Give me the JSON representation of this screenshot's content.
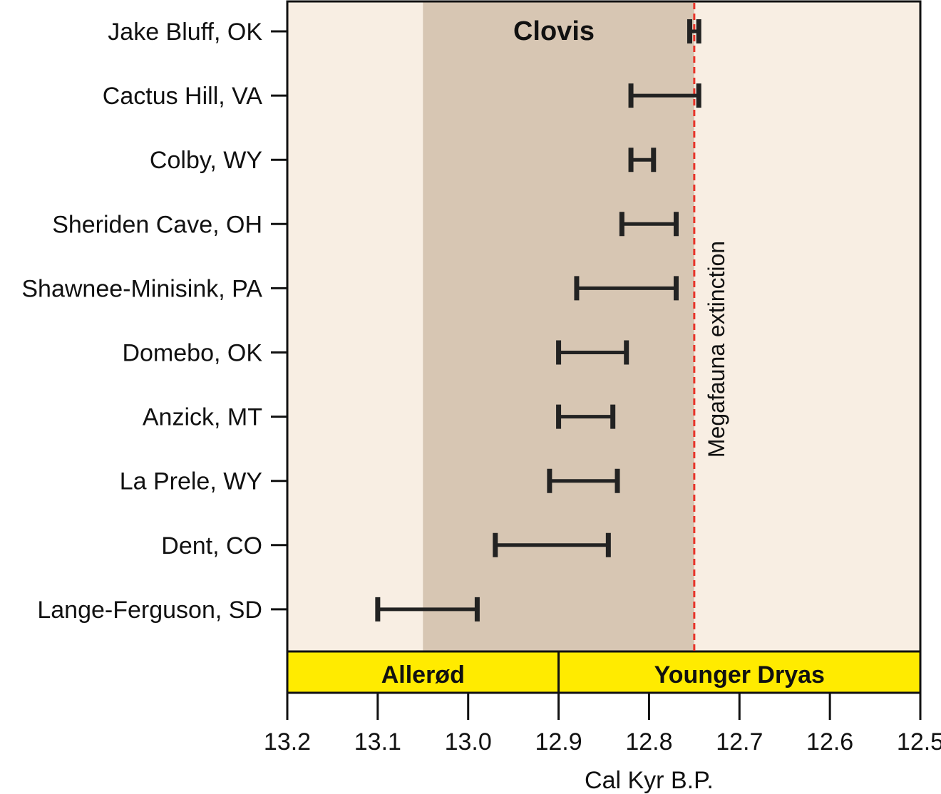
{
  "chart_data": {
    "type": "scatter",
    "title": "Clovis",
    "xlabel": "Cal Kyr B.P.",
    "ylabel": "",
    "xlim": [
      13.2,
      12.5
    ],
    "x_reversed": true,
    "x_ticks": [
      "13.2",
      "13.1",
      "13.0",
      "12.9",
      "12.8",
      "12.7",
      "12.6",
      "12.5"
    ],
    "grid": false,
    "legend": "none",
    "series": [
      {
        "categories": [
          "Jake Bluff, OK",
          "Cactus Hill, VA",
          "Colby, WY",
          "Sheriden Cave, OH",
          "Shawnee-Minisink, PA",
          "Domebo, OK",
          "Anzick, MT",
          "La Prele, WY",
          "Dent, CO",
          "Lange-Ferguson, SD"
        ],
        "ranges": [
          [
            12.755,
            12.745
          ],
          [
            12.82,
            12.745
          ],
          [
            12.82,
            12.795
          ],
          [
            12.83,
            12.77
          ],
          [
            12.88,
            12.77
          ],
          [
            12.9,
            12.825
          ],
          [
            12.9,
            12.84
          ],
          [
            12.91,
            12.835
          ],
          [
            12.97,
            12.845
          ],
          [
            13.1,
            12.99
          ]
        ]
      }
    ],
    "clovis_interval": [
      13.05,
      12.75
    ],
    "extinction_line": {
      "x": 12.75,
      "label": "Megafauna extinction",
      "color": "#e8342a"
    },
    "periods": [
      {
        "label": "Allerød",
        "range": [
          13.2,
          12.9
        ]
      },
      {
        "label": "Younger Dryas",
        "range": [
          12.9,
          12.5
        ]
      }
    ],
    "colors": {
      "background": "#f8eee3",
      "clovis_band": "#d7c6b3",
      "bar": "#222222",
      "period_bar": "#ffeb00"
    }
  }
}
